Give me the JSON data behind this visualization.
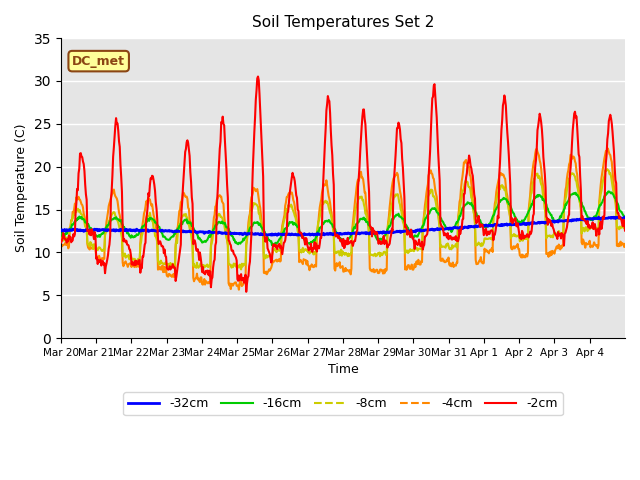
{
  "title": "Soil Temperatures Set 2",
  "xlabel": "Time",
  "ylabel": "Soil Temperature (C)",
  "ylim": [
    0,
    35
  ],
  "yticks": [
    0,
    5,
    10,
    15,
    20,
    25,
    30,
    35
  ],
  "background_color": "#e5e5e5",
  "legend_label": "DC_met",
  "legend_label_color": "#8B4513",
  "legend_box_color": "#FFFF99",
  "x_labels": [
    "Mar 20",
    "Mar 21",
    "Mar 22",
    "Mar 23",
    "Mar 24",
    "Mar 25",
    "Mar 26",
    "Mar 27",
    "Mar 28",
    "Mar 29",
    "Mar 30",
    "Mar 31",
    "Apr 1",
    "Apr 2",
    "Apr 3",
    "Apr 4"
  ],
  "series_colors": {
    "-32cm": "#0000ff",
    "-16cm": "#00cc00",
    "-8cm": "#cccc00",
    "-4cm": "#ff8800",
    "-2cm": "#ff0000"
  },
  "series_linewidths": {
    "-32cm": 2.0,
    "-16cm": 1.5,
    "-8cm": 1.5,
    "-4cm": 1.5,
    "-2cm": 1.5
  }
}
